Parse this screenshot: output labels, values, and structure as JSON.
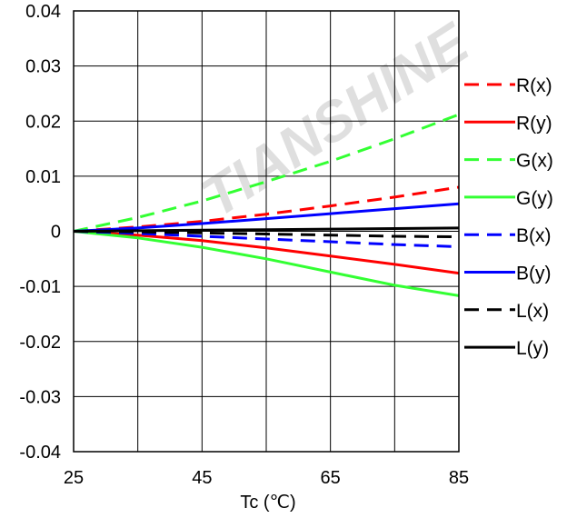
{
  "chart_data": {
    "type": "line",
    "title": "",
    "xlabel": "Tc (℃)",
    "ylabel": "",
    "xlim": [
      25,
      85
    ],
    "ylim": [
      -0.04,
      0.04
    ],
    "x_ticks": [
      25,
      45,
      65,
      85
    ],
    "x_tick_labels": [
      "25",
      "45",
      "65",
      "85"
    ],
    "y_ticks": [
      0.04,
      0.03,
      0.02,
      0.01,
      0,
      -0.01,
      -0.02,
      -0.03,
      -0.04
    ],
    "y_tick_labels": [
      "0.04",
      "0.03",
      "0.02",
      "0.01",
      "0",
      "-0.01",
      "-0.02",
      "-0.03",
      "-0.04"
    ],
    "grid": true,
    "legend_position": "right",
    "x": [
      25,
      35,
      45,
      55,
      65,
      75,
      85
    ],
    "series": [
      {
        "name": "R(x)",
        "color": "#ff0000",
        "dash": "dashed",
        "values": [
          0,
          0.0008,
          0.0018,
          0.0031,
          0.0046,
          0.0062,
          0.008
        ]
      },
      {
        "name": "R(y)",
        "color": "#ff0000",
        "dash": "solid",
        "values": [
          0,
          -0.0007,
          -0.0017,
          -0.003,
          -0.0045,
          -0.006,
          -0.0076
        ]
      },
      {
        "name": "G(x)",
        "color": "#33ff33",
        "dash": "dashed",
        "values": [
          0,
          0.0025,
          0.0055,
          0.009,
          0.0127,
          0.0168,
          0.0212
        ]
      },
      {
        "name": "G(y)",
        "color": "#33ff33",
        "dash": "solid",
        "values": [
          0,
          -0.0012,
          -0.0029,
          -0.005,
          -0.0074,
          -0.0098,
          -0.0117
        ]
      },
      {
        "name": "B(x)",
        "color": "#0000ff",
        "dash": "dashed",
        "values": [
          0,
          -0.0004,
          -0.0009,
          -0.0014,
          -0.0019,
          -0.0024,
          -0.0028
        ]
      },
      {
        "name": "B(y)",
        "color": "#0000ff",
        "dash": "solid",
        "values": [
          0,
          0.0006,
          0.0014,
          0.0023,
          0.0032,
          0.0041,
          0.005
        ]
      },
      {
        "name": "L(x)",
        "color": "#000000",
        "dash": "dashed",
        "values": [
          0,
          -0.0001,
          -0.0003,
          -0.0005,
          -0.0007,
          -0.0009,
          -0.001
        ]
      },
      {
        "name": "L(y)",
        "color": "#000000",
        "dash": "solid",
        "values": [
          0,
          0.0001,
          0.0002,
          0.0003,
          0.0004,
          0.0005,
          0.0006
        ]
      }
    ]
  },
  "watermark": {
    "text": "TIANSHINE"
  }
}
